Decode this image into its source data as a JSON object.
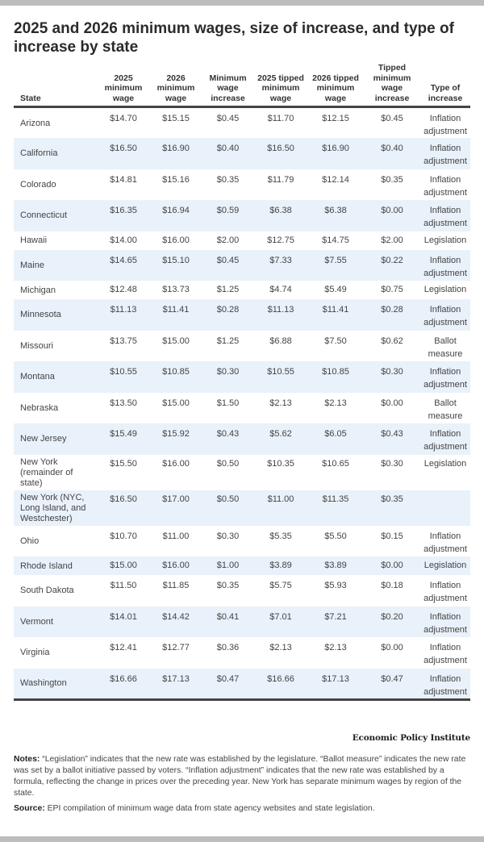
{
  "title": "2025 and 2026 minimum wages, size of increase, and type of increase by state",
  "columns": [
    "State",
    "2025 minimum wage",
    "2026 minimum wage",
    "Minimum wage increase",
    "2025 tipped minimum wage",
    "2026 tipped minimum wage",
    "Tipped minimum wage increase",
    "Type of increase"
  ],
  "rows": [
    [
      "Arizona",
      "$14.70",
      "$15.15",
      "$0.45",
      "$11.70",
      "$12.15",
      "$0.45",
      "Inflation adjustment"
    ],
    [
      "California",
      "$16.50",
      "$16.90",
      "$0.40",
      "$16.50",
      "$16.90",
      "$0.40",
      "Inflation adjustment"
    ],
    [
      "Colorado",
      "$14.81",
      "$15.16",
      "$0.35",
      "$11.79",
      "$12.14",
      "$0.35",
      "Inflation adjustment"
    ],
    [
      "Connecticut",
      "$16.35",
      "$16.94",
      "$0.59",
      "$6.38",
      "$6.38",
      "$0.00",
      "Inflation adjustment"
    ],
    [
      "Hawaii",
      "$14.00",
      "$16.00",
      "$2.00",
      "$12.75",
      "$14.75",
      "$2.00",
      "Legislation"
    ],
    [
      "Maine",
      "$14.65",
      "$15.10",
      "$0.45",
      "$7.33",
      "$7.55",
      "$0.22",
      "Inflation adjustment"
    ],
    [
      "Michigan",
      "$12.48",
      "$13.73",
      "$1.25",
      "$4.74",
      "$5.49",
      "$0.75",
      "Legislation"
    ],
    [
      "Minnesota",
      "$11.13",
      "$11.41",
      "$0.28",
      "$11.13",
      "$11.41",
      "$0.28",
      "Inflation adjustment"
    ],
    [
      "Missouri",
      "$13.75",
      "$15.00",
      "$1.25",
      "$6.88",
      "$7.50",
      "$0.62",
      "Ballot measure"
    ],
    [
      "Montana",
      "$10.55",
      "$10.85",
      "$0.30",
      "$10.55",
      "$10.85",
      "$0.30",
      "Inflation adjustment"
    ],
    [
      "Nebraska",
      "$13.50",
      "$15.00",
      "$1.50",
      "$2.13",
      "$2.13",
      "$0.00",
      "Ballot measure"
    ],
    [
      "New Jersey",
      "$15.49",
      "$15.92",
      "$0.43",
      "$5.62",
      "$6.05",
      "$0.43",
      "Inflation adjustment"
    ],
    [
      "New York (remainder of state)",
      "$15.50",
      "$16.00",
      "$0.50",
      "$10.35",
      "$10.65",
      "$0.30",
      "Legislation"
    ],
    [
      "New York (NYC, Long Island, and Westchester)",
      "$16.50",
      "$17.00",
      "$0.50",
      "$11.00",
      "$11.35",
      "$0.35",
      ""
    ],
    [
      "Ohio",
      "$10.70",
      "$11.00",
      "$0.30",
      "$5.35",
      "$5.50",
      "$0.15",
      "Inflation adjustment"
    ],
    [
      "Rhode Island",
      "$15.00",
      "$16.00",
      "$1.00",
      "$3.89",
      "$3.89",
      "$0.00",
      "Legislation"
    ],
    [
      "South Dakota",
      "$11.50",
      "$11.85",
      "$0.35",
      "$5.75",
      "$5.93",
      "$0.18",
      "Inflation adjustment"
    ],
    [
      "Vermont",
      "$14.01",
      "$14.42",
      "$0.41",
      "$7.01",
      "$7.21",
      "$0.20",
      "Inflation adjustment"
    ],
    [
      "Virginia",
      "$12.41",
      "$12.77",
      "$0.36",
      "$2.13",
      "$2.13",
      "$0.00",
      "Inflation adjustment"
    ],
    [
      "Washington",
      "$16.66",
      "$17.13",
      "$0.47",
      "$16.66",
      "$17.13",
      "$0.47",
      "Inflation adjustment"
    ]
  ],
  "logo": "Economic Policy Institute",
  "notes": {
    "label": "Notes:",
    "text": "“Legislation” indicates that the new rate was established by the legislature. “Ballot measure” indicates the new rate was set by a ballot initiative passed by voters. “Inflation adjustment” indicates that the new rate was established by a formula, reflecting the change in prices over the preceding year. New York has separate minimum wages by region of the state."
  },
  "source": {
    "label": "Source:",
    "text": "EPI compilation of minimum wage data from state agency websites and state legislation."
  },
  "colors": {
    "row_shade": "#e9f1fa",
    "rule": "#444444",
    "frame_bar": "#bdbdbd"
  }
}
